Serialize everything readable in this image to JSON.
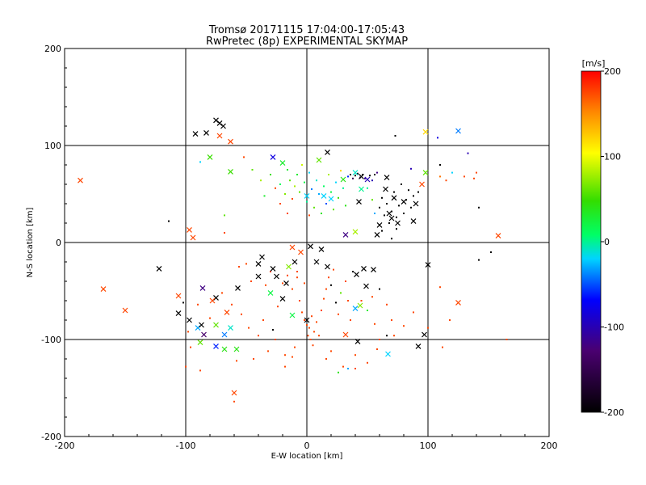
{
  "chart_data": {
    "type": "scatter",
    "title": "Tromsø 20171115 17:04:00-17:05:43",
    "subtitle": "RwPretec (8p) EXPERIMENTAL SKYMAP",
    "xlabel": "E-W location [km]",
    "ylabel": "N-S location [km]",
    "xlim": [
      -200,
      200
    ],
    "ylim": [
      -200,
      200
    ],
    "x_ticks": [
      "-200",
      "-100",
      "0",
      "100",
      "200"
    ],
    "y_ticks": [
      "-200",
      "-100",
      "0",
      "100",
      "200"
    ],
    "grid": true,
    "colorbar": {
      "label": "[m/s]",
      "min": -200,
      "max": 200,
      "ticks": [
        "200",
        "100",
        "0",
        "-100",
        "-200"
      ]
    },
    "markers": [
      {
        "x": -92,
        "y": 112,
        "v": -200
      },
      {
        "x": -83,
        "y": 113,
        "v": -200
      },
      {
        "x": -75,
        "y": 126,
        "v": -200
      },
      {
        "x": -72,
        "y": 123,
        "v": -200
      },
      {
        "x": -69,
        "y": 120,
        "v": -200
      },
      {
        "x": -72,
        "y": 110,
        "v": 175
      },
      {
        "x": -63,
        "y": 104,
        "v": 175
      },
      {
        "x": -187,
        "y": 64,
        "v": 175
      },
      {
        "x": -80,
        "y": 88,
        "v": 50
      },
      {
        "x": -63,
        "y": 73,
        "v": 50
      },
      {
        "x": -28,
        "y": 88,
        "v": -80
      },
      {
        "x": -20,
        "y": 82,
        "v": 30
      },
      {
        "x": 17,
        "y": 93,
        "v": -200
      },
      {
        "x": 98,
        "y": 114,
        "v": 120
      },
      {
        "x": 125,
        "y": 115,
        "v": -40
      },
      {
        "x": 10,
        "y": 85,
        "v": 60
      },
      {
        "x": 40,
        "y": 72,
        "v": -10
      },
      {
        "x": 45,
        "y": 68,
        "v": -200
      },
      {
        "x": 50,
        "y": 65,
        "v": -100
      },
      {
        "x": 66,
        "y": 67,
        "v": -200
      },
      {
        "x": 98,
        "y": 72,
        "v": 60
      },
      {
        "x": 30,
        "y": 65,
        "v": 40
      },
      {
        "x": 20,
        "y": 45,
        "v": -20
      },
      {
        "x": 14,
        "y": 48,
        "v": -20
      },
      {
        "x": 0,
        "y": 48,
        "v": -20
      },
      {
        "x": 45,
        "y": 55,
        "v": 0
      },
      {
        "x": 43,
        "y": 42,
        "v": -200
      },
      {
        "x": 65,
        "y": 55,
        "v": -200
      },
      {
        "x": 72,
        "y": 46,
        "v": -200
      },
      {
        "x": 80,
        "y": 42,
        "v": -200
      },
      {
        "x": 68,
        "y": 30,
        "v": -200
      },
      {
        "x": 70,
        "y": 25,
        "v": -200
      },
      {
        "x": 75,
        "y": 20,
        "v": -200
      },
      {
        "x": 90,
        "y": 40,
        "v": -200
      },
      {
        "x": 95,
        "y": 60,
        "v": 175
      },
      {
        "x": 60,
        "y": 18,
        "v": -200
      },
      {
        "x": 58,
        "y": 8,
        "v": -200
      },
      {
        "x": 88,
        "y": 22,
        "v": -200
      },
      {
        "x": 40,
        "y": 11,
        "v": 80
      },
      {
        "x": 32,
        "y": 8,
        "v": -120
      },
      {
        "x": 158,
        "y": 7,
        "v": 175
      },
      {
        "x": -97,
        "y": 13,
        "v": 175
      },
      {
        "x": -94,
        "y": 5,
        "v": 175
      },
      {
        "x": -122,
        "y": -27,
        "v": -200
      },
      {
        "x": -86,
        "y": -47,
        "v": -120
      },
      {
        "x": -75,
        "y": -57,
        "v": -200
      },
      {
        "x": -57,
        "y": -47,
        "v": -200
      },
      {
        "x": -40,
        "y": -35,
        "v": -200
      },
      {
        "x": -40,
        "y": -22,
        "v": -200
      },
      {
        "x": -28,
        "y": -27,
        "v": -200
      },
      {
        "x": -25,
        "y": -35,
        "v": -200
      },
      {
        "x": -37,
        "y": -15,
        "v": -200
      },
      {
        "x": -17,
        "y": -42,
        "v": -200
      },
      {
        "x": -10,
        "y": -20,
        "v": -200
      },
      {
        "x": -12,
        "y": -5,
        "v": 175
      },
      {
        "x": -5,
        "y": -10,
        "v": 175
      },
      {
        "x": 3,
        "y": -4,
        "v": -200
      },
      {
        "x": 8,
        "y": -20,
        "v": -200
      },
      {
        "x": 12,
        "y": -7,
        "v": -200
      },
      {
        "x": 17,
        "y": -25,
        "v": -200
      },
      {
        "x": 100,
        "y": -23,
        "v": -200
      },
      {
        "x": 41,
        "y": -33,
        "v": -200
      },
      {
        "x": 47,
        "y": -27,
        "v": -200
      },
      {
        "x": 55,
        "y": -28,
        "v": -200
      },
      {
        "x": 49,
        "y": -45,
        "v": -200
      },
      {
        "x": 44,
        "y": -65,
        "v": 70
      },
      {
        "x": 40,
        "y": -68,
        "v": -30
      },
      {
        "x": -15,
        "y": -25,
        "v": 70
      },
      {
        "x": -168,
        "y": -48,
        "v": 175
      },
      {
        "x": -150,
        "y": -70,
        "v": 175
      },
      {
        "x": -106,
        "y": -55,
        "v": 175
      },
      {
        "x": -106,
        "y": -73,
        "v": -200
      },
      {
        "x": -97,
        "y": -80,
        "v": -200
      },
      {
        "x": -66,
        "y": -72,
        "v": 175
      },
      {
        "x": -90,
        "y": -88,
        "v": -30
      },
      {
        "x": -85,
        "y": -95,
        "v": -130
      },
      {
        "x": -87,
        "y": -85,
        "v": -200
      },
      {
        "x": -75,
        "y": -85,
        "v": 60
      },
      {
        "x": -68,
        "y": -95,
        "v": -40
      },
      {
        "x": -63,
        "y": -88,
        "v": -10
      },
      {
        "x": -78,
        "y": -60,
        "v": 175
      },
      {
        "x": -88,
        "y": -103,
        "v": 60
      },
      {
        "x": -75,
        "y": -107,
        "v": -60
      },
      {
        "x": -68,
        "y": -110,
        "v": 40
      },
      {
        "x": -58,
        "y": -110,
        "v": 40
      },
      {
        "x": -60,
        "y": -155,
        "v": 175
      },
      {
        "x": -30,
        "y": -52,
        "v": 20
      },
      {
        "x": -20,
        "y": -58,
        "v": -200
      },
      {
        "x": -12,
        "y": -75,
        "v": 20
      },
      {
        "x": 0,
        "y": -80,
        "v": -200
      },
      {
        "x": 32,
        "y": -95,
        "v": 175
      },
      {
        "x": 42,
        "y": -102,
        "v": -200
      },
      {
        "x": 67,
        "y": -115,
        "v": -20
      },
      {
        "x": 92,
        "y": -107,
        "v": -200
      },
      {
        "x": 97,
        "y": -95,
        "v": -200
      },
      {
        "x": 125,
        "y": -62,
        "v": 175
      }
    ],
    "dots": [
      {
        "x": -114,
        "y": 22,
        "v": -200
      },
      {
        "x": -88,
        "y": 83,
        "v": -20
      },
      {
        "x": -68,
        "y": 28,
        "v": 60
      },
      {
        "x": -68,
        "y": 10,
        "v": 175
      },
      {
        "x": -45,
        "y": 75,
        "v": 60
      },
      {
        "x": -38,
        "y": 64,
        "v": 80
      },
      {
        "x": -35,
        "y": 48,
        "v": 30
      },
      {
        "x": -30,
        "y": 70,
        "v": 50
      },
      {
        "x": -26,
        "y": 56,
        "v": 175
      },
      {
        "x": -22,
        "y": 60,
        "v": 10
      },
      {
        "x": -18,
        "y": 50,
        "v": 70
      },
      {
        "x": -16,
        "y": 75,
        "v": 30
      },
      {
        "x": -14,
        "y": 64,
        "v": 60
      },
      {
        "x": -12,
        "y": 45,
        "v": 175
      },
      {
        "x": -10,
        "y": 58,
        "v": 80
      },
      {
        "x": -8,
        "y": 70,
        "v": 30
      },
      {
        "x": -6,
        "y": 52,
        "v": 60
      },
      {
        "x": -4,
        "y": 80,
        "v": 90
      },
      {
        "x": -2,
        "y": 62,
        "v": 20
      },
      {
        "x": 0,
        "y": 42,
        "v": 0
      },
      {
        "x": 2,
        "y": 72,
        "v": -20
      },
      {
        "x": 4,
        "y": 55,
        "v": -40
      },
      {
        "x": 6,
        "y": 36,
        "v": 60
      },
      {
        "x": 8,
        "y": 64,
        "v": -10
      },
      {
        "x": 10,
        "y": 50,
        "v": -30
      },
      {
        "x": 12,
        "y": 30,
        "v": 40
      },
      {
        "x": 14,
        "y": 58,
        "v": 10
      },
      {
        "x": 16,
        "y": 40,
        "v": -50
      },
      {
        "x": 18,
        "y": 70,
        "v": 80
      },
      {
        "x": 20,
        "y": 52,
        "v": 20
      },
      {
        "x": 22,
        "y": 34,
        "v": 60
      },
      {
        "x": 24,
        "y": 62,
        "v": -20
      },
      {
        "x": 26,
        "y": 46,
        "v": 50
      },
      {
        "x": 28,
        "y": 74,
        "v": 120
      },
      {
        "x": 30,
        "y": 56,
        "v": 0
      },
      {
        "x": 32,
        "y": 38,
        "v": 40
      },
      {
        "x": 34,
        "y": 68,
        "v": -60
      },
      {
        "x": 36,
        "y": 70,
        "v": -200
      },
      {
        "x": 38,
        "y": 66,
        "v": -150
      },
      {
        "x": 40,
        "y": 69,
        "v": -200
      },
      {
        "x": 42,
        "y": 71,
        "v": -180
      },
      {
        "x": 44,
        "y": 67,
        "v": -130
      },
      {
        "x": 46,
        "y": 70,
        "v": -200
      },
      {
        "x": 48,
        "y": 66,
        "v": -110
      },
      {
        "x": 52,
        "y": 69,
        "v": -200
      },
      {
        "x": 54,
        "y": 64,
        "v": -100
      },
      {
        "x": 56,
        "y": 70,
        "v": -200
      },
      {
        "x": 58,
        "y": 72,
        "v": -120
      },
      {
        "x": 50,
        "y": 56,
        "v": 0
      },
      {
        "x": 54,
        "y": 44,
        "v": 60
      },
      {
        "x": 56,
        "y": 30,
        "v": -30
      },
      {
        "x": 60,
        "y": 36,
        "v": -200
      },
      {
        "x": 62,
        "y": 46,
        "v": -200
      },
      {
        "x": 64,
        "y": 28,
        "v": -200
      },
      {
        "x": 66,
        "y": 40,
        "v": -200
      },
      {
        "x": 68,
        "y": 20,
        "v": -200
      },
      {
        "x": 70,
        "y": 32,
        "v": -200
      },
      {
        "x": 72,
        "y": 52,
        "v": -200
      },
      {
        "x": 74,
        "y": 26,
        "v": -200
      },
      {
        "x": 76,
        "y": 38,
        "v": -200
      },
      {
        "x": 78,
        "y": 60,
        "v": -200
      },
      {
        "x": 80,
        "y": 30,
        "v": -200
      },
      {
        "x": 82,
        "y": 44,
        "v": -200
      },
      {
        "x": 84,
        "y": 54,
        "v": -200
      },
      {
        "x": 86,
        "y": 36,
        "v": -200
      },
      {
        "x": 88,
        "y": 48,
        "v": -200
      },
      {
        "x": 92,
        "y": 52,
        "v": -200
      },
      {
        "x": 70,
        "y": 4,
        "v": -200
      },
      {
        "x": 62,
        "y": 12,
        "v": -200
      },
      {
        "x": 74,
        "y": 14,
        "v": -200
      },
      {
        "x": 86,
        "y": 76,
        "v": -100
      },
      {
        "x": 110,
        "y": 68,
        "v": 160
      },
      {
        "x": 115,
        "y": 64,
        "v": 175
      },
      {
        "x": 120,
        "y": 72,
        "v": -20
      },
      {
        "x": 130,
        "y": 68,
        "v": 175
      },
      {
        "x": 138,
        "y": 66,
        "v": 175
      },
      {
        "x": 140,
        "y": 72,
        "v": 175
      },
      {
        "x": 133,
        "y": 92,
        "v": -100
      },
      {
        "x": 73,
        "y": 110,
        "v": -200
      },
      {
        "x": 108,
        "y": 108,
        "v": -80
      },
      {
        "x": 110,
        "y": 80,
        "v": -200
      },
      {
        "x": 142,
        "y": 36,
        "v": -200
      },
      {
        "x": 152,
        "y": -10,
        "v": -200
      },
      {
        "x": 142,
        "y": -18,
        "v": -200
      },
      {
        "x": -56,
        "y": -25,
        "v": 175
      },
      {
        "x": -50,
        "y": -22,
        "v": 175
      },
      {
        "x": -46,
        "y": -40,
        "v": 175
      },
      {
        "x": -34,
        "y": -44,
        "v": 175
      },
      {
        "x": -30,
        "y": -30,
        "v": 175
      },
      {
        "x": -24,
        "y": -66,
        "v": 175
      },
      {
        "x": -20,
        "y": -42,
        "v": 175
      },
      {
        "x": -16,
        "y": -34,
        "v": 175
      },
      {
        "x": -12,
        "y": -48,
        "v": 175
      },
      {
        "x": -8,
        "y": -36,
        "v": 175
      },
      {
        "x": -6,
        "y": -60,
        "v": 175
      },
      {
        "x": -4,
        "y": -72,
        "v": 175
      },
      {
        "x": -2,
        "y": -80,
        "v": 175
      },
      {
        "x": 0,
        "y": -85,
        "v": 175
      },
      {
        "x": 2,
        "y": -88,
        "v": 175
      },
      {
        "x": 4,
        "y": -76,
        "v": 175
      },
      {
        "x": 6,
        "y": -92,
        "v": 175
      },
      {
        "x": 8,
        "y": -82,
        "v": 175
      },
      {
        "x": 10,
        "y": -96,
        "v": 175
      },
      {
        "x": 12,
        "y": -70,
        "v": 175
      },
      {
        "x": 3,
        "y": -100,
        "v": 175
      },
      {
        "x": 5,
        "y": -106,
        "v": 175
      },
      {
        "x": 1,
        "y": -96,
        "v": 175
      },
      {
        "x": 14,
        "y": -58,
        "v": 175
      },
      {
        "x": 16,
        "y": -48,
        "v": 175
      },
      {
        "x": 18,
        "y": -36,
        "v": 175
      },
      {
        "x": 20,
        "y": -44,
        "v": -200
      },
      {
        "x": 22,
        "y": -28,
        "v": 175
      },
      {
        "x": 24,
        "y": -62,
        "v": -200
      },
      {
        "x": 26,
        "y": -74,
        "v": 175
      },
      {
        "x": 28,
        "y": -52,
        "v": 60
      },
      {
        "x": 32,
        "y": -40,
        "v": 175
      },
      {
        "x": 34,
        "y": -60,
        "v": 175
      },
      {
        "x": 36,
        "y": -80,
        "v": 175
      },
      {
        "x": 38,
        "y": -30,
        "v": -200
      },
      {
        "x": 45,
        "y": -60,
        "v": 175
      },
      {
        "x": 50,
        "y": -70,
        "v": 30
      },
      {
        "x": 54,
        "y": -56,
        "v": 175
      },
      {
        "x": 60,
        "y": -48,
        "v": -200
      },
      {
        "x": 66,
        "y": -64,
        "v": 175
      },
      {
        "x": 70,
        "y": -80,
        "v": 175
      },
      {
        "x": 72,
        "y": -96,
        "v": 175
      },
      {
        "x": 80,
        "y": -86,
        "v": 175
      },
      {
        "x": 88,
        "y": -72,
        "v": 175
      },
      {
        "x": 66,
        "y": -96,
        "v": -200
      },
      {
        "x": 58,
        "y": -110,
        "v": 175
      },
      {
        "x": 50,
        "y": -124,
        "v": 175
      },
      {
        "x": 40,
        "y": -116,
        "v": 175
      },
      {
        "x": 30,
        "y": -128,
        "v": 175
      },
      {
        "x": 20,
        "y": -112,
        "v": 175
      },
      {
        "x": 16,
        "y": -120,
        "v": 175
      },
      {
        "x": 34,
        "y": -130,
        "v": -30
      },
      {
        "x": 26,
        "y": -134,
        "v": 40
      },
      {
        "x": -10,
        "y": -108,
        "v": 175
      },
      {
        "x": -18,
        "y": -116,
        "v": 175
      },
      {
        "x": -26,
        "y": -100,
        "v": 175
      },
      {
        "x": -32,
        "y": -112,
        "v": 175
      },
      {
        "x": -40,
        "y": -96,
        "v": 175
      },
      {
        "x": -44,
        "y": -120,
        "v": 175
      },
      {
        "x": -48,
        "y": -88,
        "v": 175
      },
      {
        "x": -36,
        "y": -80,
        "v": 175
      },
      {
        "x": -28,
        "y": -90,
        "v": -200
      },
      {
        "x": -54,
        "y": -74,
        "v": 175
      },
      {
        "x": -62,
        "y": -64,
        "v": 175
      },
      {
        "x": -70,
        "y": -52,
        "v": 175
      },
      {
        "x": -80,
        "y": -78,
        "v": 175
      },
      {
        "x": -90,
        "y": -64,
        "v": 175
      },
      {
        "x": -98,
        "y": -92,
        "v": 175
      },
      {
        "x": -102,
        "y": -62,
        "v": -200
      },
      {
        "x": -96,
        "y": -108,
        "v": 175
      },
      {
        "x": -58,
        "y": -122,
        "v": 175
      },
      {
        "x": -60,
        "y": -164,
        "v": 175
      },
      {
        "x": -100,
        "y": -128,
        "v": 175
      },
      {
        "x": -88,
        "y": -132,
        "v": 175
      },
      {
        "x": -18,
        "y": -128,
        "v": 175
      },
      {
        "x": -12,
        "y": -118,
        "v": 175
      },
      {
        "x": -8,
        "y": -30,
        "v": 175
      },
      {
        "x": -2,
        "y": -42,
        "v": 175
      },
      {
        "x": 40,
        "y": -130,
        "v": 175
      },
      {
        "x": 110,
        "y": -46,
        "v": 175
      },
      {
        "x": 118,
        "y": -80,
        "v": 175
      },
      {
        "x": 165,
        "y": -100,
        "v": 175
      },
      {
        "x": 100,
        "y": -88,
        "v": 175
      },
      {
        "x": 112,
        "y": -108,
        "v": 175
      },
      {
        "x": 60,
        "y": -100,
        "v": 175
      },
      {
        "x": 56,
        "y": -84,
        "v": 175
      },
      {
        "x": -52,
        "y": 88,
        "v": 175
      },
      {
        "x": -22,
        "y": 40,
        "v": 175
      },
      {
        "x": -16,
        "y": 30,
        "v": 175
      },
      {
        "x": 2,
        "y": 28,
        "v": 175
      }
    ]
  }
}
